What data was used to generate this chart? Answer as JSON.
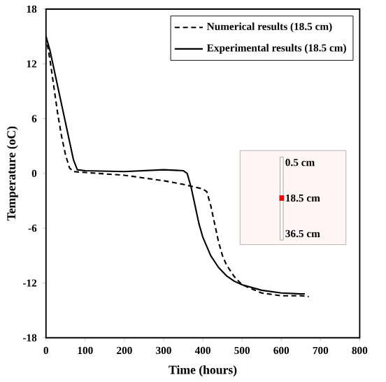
{
  "chart_data": {
    "type": "line",
    "xlabel": "Time (hours)",
    "ylabel": "Temperature (oC)",
    "xlim": [
      0,
      800
    ],
    "ylim": [
      -18,
      18
    ],
    "xticks": [
      0,
      100,
      200,
      300,
      400,
      500,
      600,
      700,
      800
    ],
    "yticks": [
      -18,
      -12,
      -6,
      0,
      6,
      12,
      18
    ],
    "grid": false,
    "legend": "top right",
    "marker": "none",
    "annotations": [
      "0.5 cm",
      "18.5 cm",
      "36.5 cm"
    ],
    "series": [
      {
        "name": "Numerical results (18.5 cm)",
        "color": "#000000",
        "line_style": "dashed",
        "x": [
          0,
          10,
          20,
          30,
          40,
          50,
          60,
          70,
          100,
          200,
          300,
          350,
          400,
          410,
          420,
          430,
          440,
          450,
          460,
          480,
          500,
          550,
          600,
          650,
          670
        ],
        "values": [
          15,
          12.5,
          9.5,
          6.5,
          4,
          2,
          0.6,
          0.2,
          0.1,
          -0.2,
          -0.8,
          -1.2,
          -1.7,
          -2,
          -3.5,
          -5.5,
          -7.5,
          -9,
          -10,
          -11.3,
          -12.2,
          -13.1,
          -13.4,
          -13.4,
          -13.5
        ]
      },
      {
        "name": "Experimental results (18.5 cm)",
        "color": "#000000",
        "line_style": "solid",
        "x": [
          0,
          10,
          20,
          30,
          40,
          50,
          60,
          70,
          80,
          100,
          200,
          300,
          350,
          360,
          370,
          380,
          390,
          400,
          420,
          440,
          460,
          480,
          500,
          550,
          600,
          650,
          660
        ],
        "values": [
          15,
          13.5,
          11.5,
          9.5,
          7.5,
          5.5,
          3.5,
          1.5,
          0.4,
          0.3,
          0.2,
          0.4,
          0.3,
          0,
          -1.5,
          -3.5,
          -5.5,
          -7,
          -9,
          -10.3,
          -11.2,
          -11.8,
          -12.2,
          -12.8,
          -13.1,
          -13.2,
          -13.2
        ]
      }
    ]
  }
}
